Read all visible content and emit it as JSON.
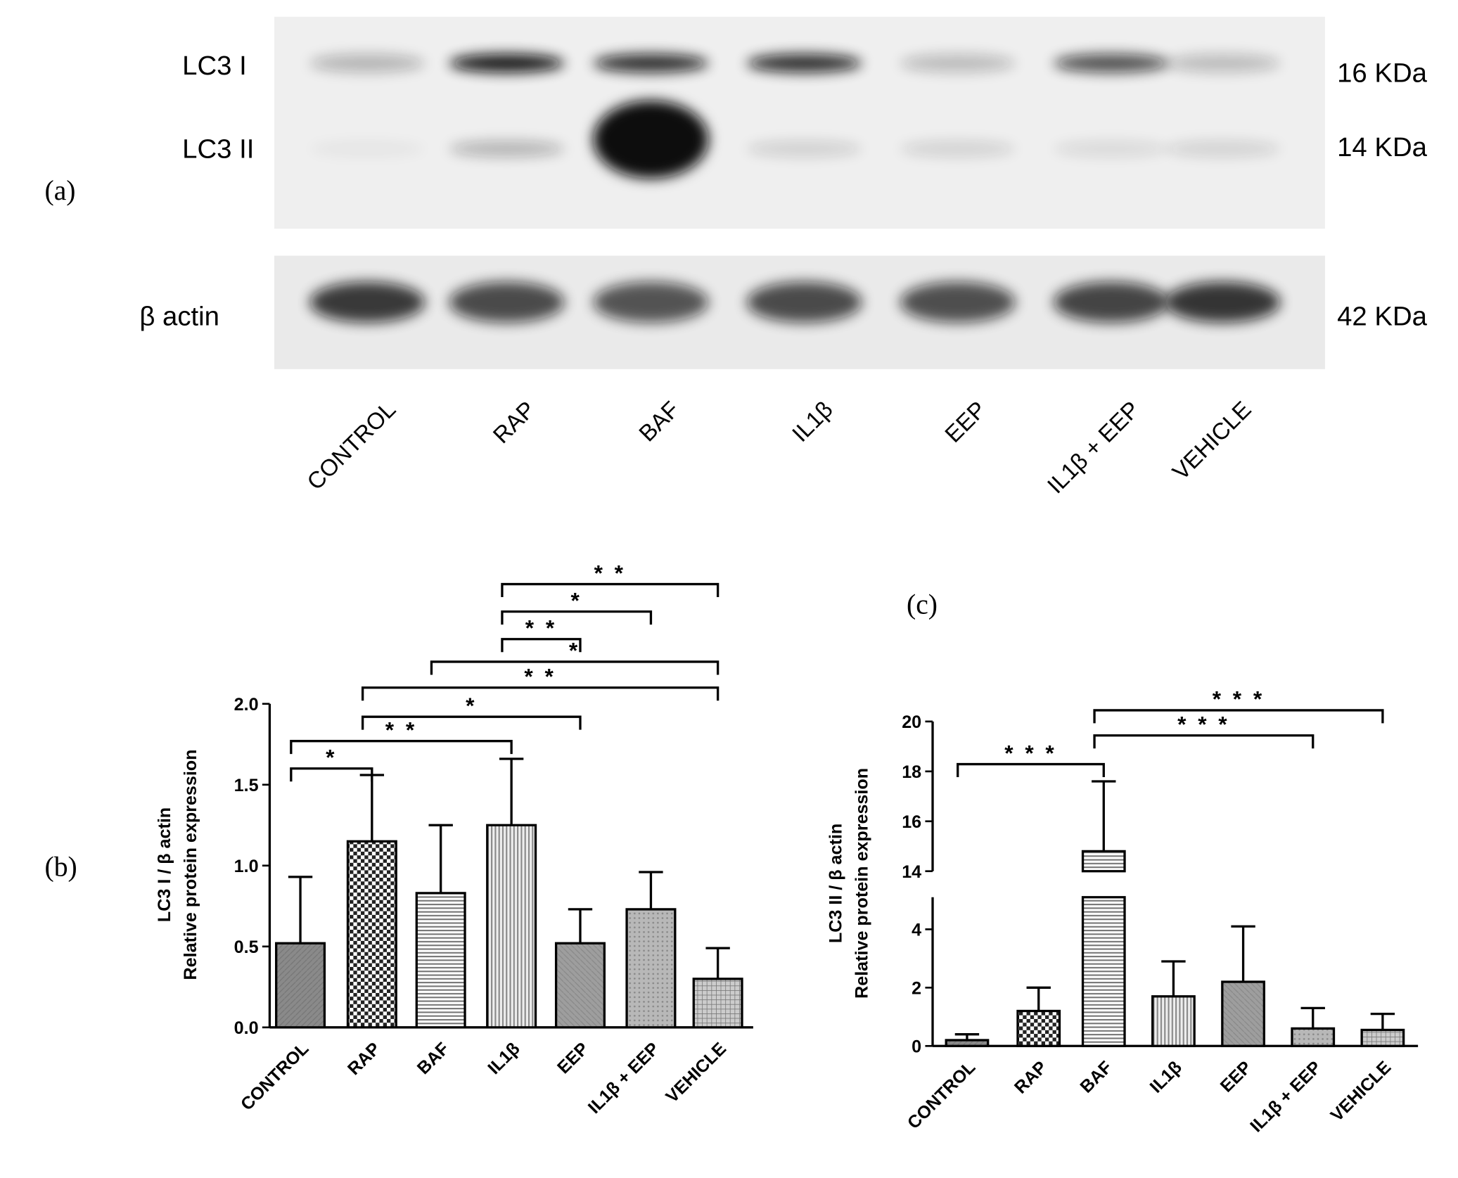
{
  "panel_labels": [
    "(a)",
    "(b)",
    "(c)"
  ],
  "blot": {
    "rows": [
      "LC3 I",
      "LC3 II",
      "β  actin"
    ],
    "sizes": [
      "16 KDa",
      "14 KDa",
      "42 KDa"
    ],
    "lanes": [
      "CONTROL",
      "RAP",
      "BAF",
      "IL1β",
      "EEP",
      "IL1β + EEP",
      "VEHICLE"
    ]
  },
  "chart_data": [
    {
      "type": "bar",
      "y_label": [
        "LC3 I / β actin",
        "Relative protein expression"
      ],
      "categories": [
        "CONTROL",
        "RAP",
        "BAF",
        "IL1β",
        "EEP",
        "IL1β + EEP",
        "VEHICLE"
      ],
      "values": [
        0.52,
        1.15,
        0.83,
        1.25,
        0.52,
        0.73,
        0.3
      ],
      "errors": [
        0.41,
        0.41,
        0.42,
        0.41,
        0.21,
        0.23,
        0.19
      ],
      "ylim": [
        0,
        2.0
      ],
      "yticks": [
        {
          "value": 0,
          "label": "0.0"
        },
        0.5,
        {
          "value": 1,
          "label": "1.0"
        },
        1.5,
        {
          "value": 2,
          "label": "2.0"
        }
      ],
      "significance": [
        "*",
        "* *",
        "*",
        "* *",
        "*",
        "* *",
        "*",
        "* *"
      ]
    },
    {
      "type": "bar",
      "y_label": [
        "LC3 II / β actin",
        "Relative protein expression"
      ],
      "categories": [
        "CONTROL",
        "RAP",
        "BAF",
        "IL1β",
        "EEP",
        "IL1β + EEP",
        "VEHICLE"
      ],
      "values": [
        0.2,
        1.2,
        14.8,
        1.7,
        2.2,
        0.6,
        0.55
      ],
      "errors": [
        0.2,
        0.8,
        2.8,
        1.2,
        1.9,
        0.7,
        0.55
      ],
      "ylim": [
        0,
        20
      ],
      "axis_break": [
        5.1,
        14
      ],
      "yticks": [
        0,
        2,
        4,
        14,
        16,
        18,
        20
      ],
      "significance": [
        "* * *",
        "* * *",
        "* * *"
      ]
    }
  ]
}
